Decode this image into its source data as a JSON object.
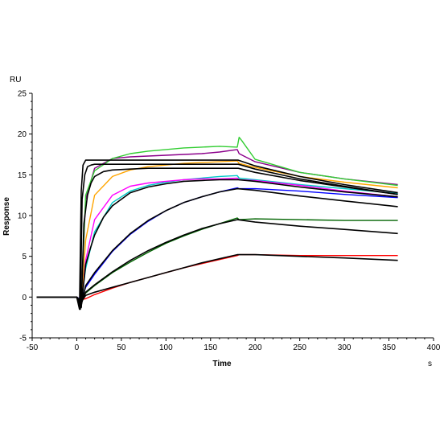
{
  "chart_data": {
    "type": "line",
    "xlabel": "Time",
    "ylabel": "Response",
    "x_unit": "s",
    "y_unit": "RU",
    "xlim": [
      -50,
      400
    ],
    "ylim": [
      -5,
      25
    ],
    "xticks": [
      -50,
      0,
      50,
      100,
      150,
      200,
      250,
      300,
      350,
      400
    ],
    "yticks": [
      -5,
      0,
      5,
      10,
      15,
      20,
      25
    ],
    "grid": false,
    "series": [
      {
        "color": "#ff0000",
        "kind": "data",
        "x": [
          -45,
          0,
          5,
          10,
          20,
          40,
          60,
          80,
          100,
          120,
          140,
          160,
          180,
          182,
          200,
          250,
          300,
          360
        ],
        "y": [
          0,
          0,
          -0.3,
          -0.2,
          0.3,
          1.1,
          1.8,
          2.4,
          3.0,
          3.6,
          4.1,
          4.6,
          5.1,
          5.2,
          5.2,
          5.1,
          5.1,
          5.1
        ]
      },
      {
        "color": "#006400",
        "kind": "data",
        "x": [
          -45,
          0,
          5,
          10,
          20,
          40,
          60,
          80,
          100,
          120,
          140,
          160,
          180,
          182,
          200,
          250,
          300,
          360
        ],
        "y": [
          0,
          0,
          -0.4,
          0.5,
          1.4,
          3.0,
          4.3,
          5.5,
          6.6,
          7.5,
          8.3,
          9.0,
          9.7,
          9.5,
          9.6,
          9.5,
          9.4,
          9.4
        ]
      },
      {
        "color": "#0000ff",
        "kind": "data",
        "x": [
          -45,
          0,
          5,
          10,
          20,
          40,
          60,
          80,
          100,
          120,
          140,
          160,
          180,
          182,
          200,
          250,
          300,
          360
        ],
        "y": [
          0,
          0,
          -0.3,
          1.2,
          2.8,
          5.6,
          7.7,
          9.3,
          10.6,
          11.6,
          12.3,
          12.9,
          13.4,
          13.3,
          13.3,
          13.0,
          12.6,
          12.2
        ]
      },
      {
        "color": "#00c8c8",
        "kind": "data",
        "x": [
          -45,
          0,
          5,
          10,
          20,
          40,
          60,
          80,
          100,
          120,
          140,
          160,
          180,
          182,
          200,
          250,
          300,
          360
        ],
        "y": [
          0,
          0,
          -0.5,
          3.5,
          8.0,
          11.6,
          13.0,
          13.7,
          14.1,
          14.4,
          14.6,
          14.8,
          14.9,
          14.6,
          14.4,
          13.8,
          13.3,
          12.7
        ]
      },
      {
        "color": "#ff00ff",
        "kind": "data",
        "x": [
          -45,
          0,
          5,
          10,
          20,
          40,
          60,
          80,
          100,
          120,
          140,
          160,
          180,
          182,
          200,
          250,
          300,
          360
        ],
        "y": [
          0,
          0,
          -0.5,
          4.5,
          9.5,
          12.5,
          13.6,
          14.0,
          14.2,
          14.4,
          14.5,
          14.5,
          14.6,
          14.4,
          14.3,
          13.7,
          13.0,
          12.3
        ]
      },
      {
        "color": "#ffa500",
        "kind": "data",
        "x": [
          -45,
          0,
          5,
          10,
          20,
          40,
          60,
          80,
          100,
          120,
          140,
          160,
          180,
          182,
          200,
          250,
          300,
          360
        ],
        "y": [
          0,
          0,
          -0.5,
          7.0,
          12.5,
          14.8,
          15.6,
          16.0,
          16.2,
          16.4,
          16.5,
          16.6,
          16.7,
          16.4,
          15.9,
          14.8,
          14.1,
          13.4
        ]
      },
      {
        "color": "#8b008b",
        "kind": "data",
        "x": [
          -45,
          0,
          5,
          10,
          20,
          40,
          60,
          80,
          100,
          120,
          140,
          160,
          180,
          182,
          200,
          250,
          300,
          360
        ],
        "y": [
          0,
          0,
          -0.5,
          12.0,
          15.8,
          17.0,
          17.2,
          17.3,
          17.4,
          17.5,
          17.6,
          17.8,
          18.1,
          17.6,
          16.6,
          15.3,
          14.5,
          13.8
        ]
      },
      {
        "color": "#32cd32",
        "kind": "data",
        "x": [
          -45,
          0,
          5,
          10,
          20,
          40,
          60,
          80,
          100,
          120,
          140,
          160,
          180,
          182,
          185,
          200,
          250,
          300,
          360
        ],
        "y": [
          0,
          0,
          -0.5,
          12.5,
          15.5,
          17.0,
          17.6,
          17.9,
          18.1,
          18.3,
          18.4,
          18.5,
          18.4,
          19.6,
          19.2,
          16.9,
          15.3,
          14.5,
          13.7
        ]
      },
      {
        "color": "#000000",
        "kind": "fit",
        "x": [
          -45,
          0,
          5,
          10,
          20,
          40,
          60,
          80,
          100,
          120,
          140,
          160,
          180,
          200,
          250,
          300,
          360
        ],
        "y": [
          0,
          0,
          -0.6,
          0.2,
          0.6,
          1.2,
          1.8,
          2.4,
          3.0,
          3.6,
          4.2,
          4.7,
          5.2,
          5.2,
          5.0,
          4.8,
          4.5
        ]
      },
      {
        "color": "#000000",
        "kind": "fit",
        "x": [
          -45,
          0,
          5,
          10,
          20,
          40,
          60,
          80,
          100,
          120,
          140,
          160,
          180,
          200,
          250,
          300,
          360
        ],
        "y": [
          0,
          0,
          -0.8,
          0.6,
          1.5,
          3.1,
          4.5,
          5.7,
          6.7,
          7.6,
          8.4,
          9.0,
          9.5,
          9.2,
          8.7,
          8.3,
          7.8
        ]
      },
      {
        "color": "#000000",
        "kind": "fit",
        "x": [
          -45,
          0,
          5,
          10,
          20,
          40,
          60,
          80,
          100,
          120,
          140,
          160,
          180,
          200,
          250,
          300,
          360
        ],
        "y": [
          0,
          0,
          -1.0,
          1.4,
          3.0,
          5.7,
          7.8,
          9.4,
          10.6,
          11.6,
          12.3,
          12.9,
          13.3,
          13.1,
          12.4,
          11.8,
          11.1
        ]
      },
      {
        "color": "#000000",
        "kind": "fit",
        "x": [
          -45,
          0,
          5,
          10,
          15,
          20,
          30,
          40,
          60,
          80,
          100,
          120,
          140,
          160,
          180,
          181,
          200,
          250,
          300,
          360
        ],
        "y": [
          0,
          0,
          -1.2,
          4.0,
          5.9,
          7.6,
          9.8,
          11.2,
          12.8,
          13.5,
          13.9,
          14.2,
          14.3,
          14.4,
          14.4,
          14.4,
          14.2,
          13.5,
          12.9,
          12.3
        ]
      },
      {
        "color": "#000000",
        "kind": "fit",
        "x": [
          -45,
          0,
          5,
          8,
          12,
          16,
          20,
          30,
          40,
          60,
          80,
          100,
          140,
          180,
          181,
          200,
          250,
          300,
          360
        ],
        "y": [
          0,
          0,
          -1.3,
          9.0,
          12.5,
          14.0,
          14.8,
          15.4,
          15.6,
          15.7,
          15.8,
          15.8,
          15.8,
          15.8,
          15.8,
          15.3,
          14.3,
          13.5,
          12.6
        ]
      },
      {
        "color": "#000000",
        "kind": "fit",
        "x": [
          -45,
          0,
          4,
          6,
          9,
          12,
          16,
          20,
          40,
          80,
          120,
          180,
          181,
          200,
          250,
          300,
          360
        ],
        "y": [
          0,
          0,
          -1.5,
          12.0,
          15.0,
          16.0,
          16.2,
          16.3,
          16.3,
          16.3,
          16.3,
          16.3,
          16.3,
          15.7,
          14.5,
          13.6,
          12.6
        ]
      },
      {
        "color": "#000000",
        "kind": "fit",
        "x": [
          -45,
          0,
          3,
          5,
          7,
          10,
          14,
          20,
          40,
          80,
          120,
          180,
          181,
          200,
          250,
          300,
          360
        ],
        "y": [
          0,
          0,
          -1.5,
          13.0,
          16.2,
          16.8,
          16.8,
          16.8,
          16.8,
          16.8,
          16.8,
          16.8,
          16.8,
          16.1,
          14.8,
          13.8,
          12.8
        ]
      }
    ]
  }
}
